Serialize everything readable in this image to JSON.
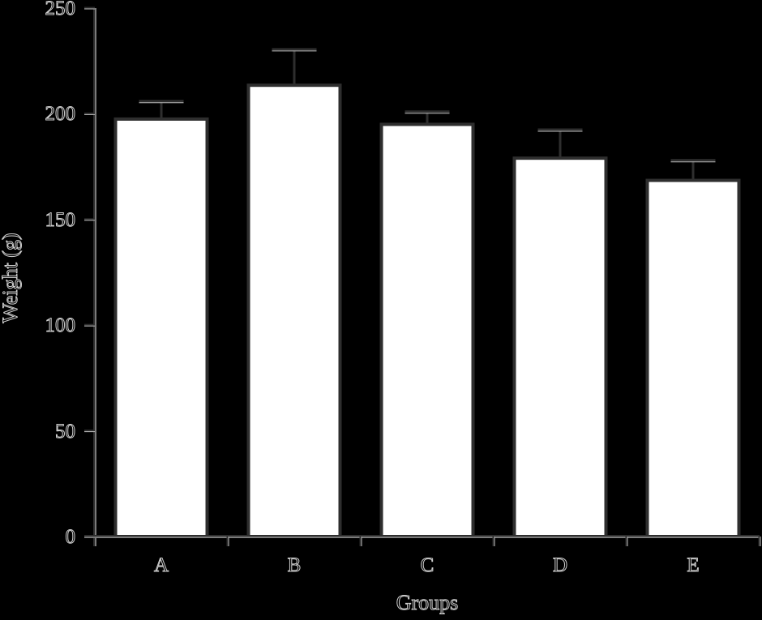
{
  "chart_data": {
    "type": "bar",
    "title": "",
    "xlabel": "Groups",
    "ylabel": "Weight (g)",
    "ylim": [
      0,
      250
    ],
    "yticks": [
      0,
      50,
      100,
      150,
      200,
      250
    ],
    "ytick_labels": [
      "0",
      "50",
      "100",
      "150",
      "200",
      "250"
    ],
    "categories": [
      "A",
      "B",
      "C",
      "D",
      "E"
    ],
    "values": [
      197.5,
      213.5,
      195,
      179,
      168.5
    ],
    "error_bars": [
      8.5,
      17,
      6,
      13.5,
      9.5
    ],
    "grid": false,
    "legend": null,
    "colors": {
      "background": "#000000",
      "bar_fill": "#ffffff",
      "bar_edge": "#2e2e2e",
      "axis": "#c8c8c8",
      "text_outline": "#d0d0d0"
    }
  },
  "axes": {
    "x_title": "Groups",
    "y_title": "Weight (g)"
  }
}
